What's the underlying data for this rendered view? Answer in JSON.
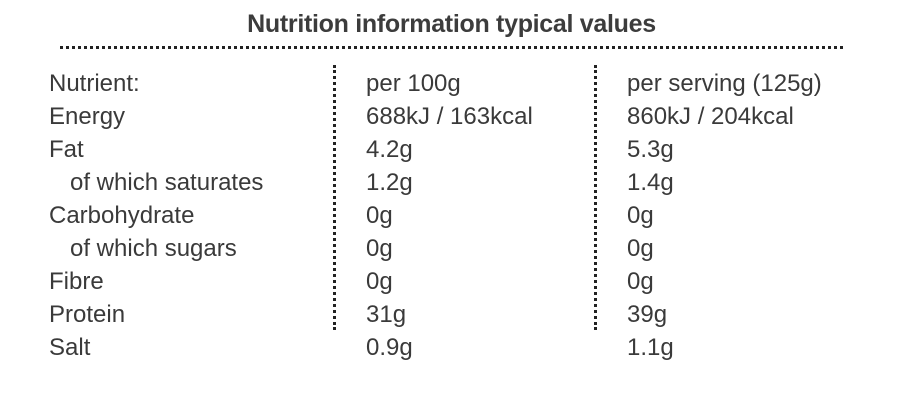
{
  "title": "Nutrition information typical values",
  "header": {
    "nutrient": "Nutrient:",
    "per100": "per 100g",
    "serving": "per serving (125g)"
  },
  "rows": [
    {
      "nutrient": "Energy",
      "per100": "688kJ / 163kcal",
      "serving": "860kJ / 204kcal"
    },
    {
      "nutrient": "Fat",
      "per100": "4.2g",
      "serving": "5.3g"
    },
    {
      "nutrient": "of which saturates",
      "per100": "1.2g",
      "serving": "1.4g"
    },
    {
      "nutrient": "Carbohydrate",
      "per100": "0g",
      "serving": "0g"
    },
    {
      "nutrient": "of which sugars",
      "per100": "0g",
      "serving": "0g"
    },
    {
      "nutrient": "Fibre",
      "per100": "0g",
      "serving": "0g"
    },
    {
      "nutrient": "Protein",
      "per100": "31g",
      "serving": "39g"
    },
    {
      "nutrient": "Salt",
      "per100": "0.9g",
      "serving": "1.1g"
    }
  ]
}
